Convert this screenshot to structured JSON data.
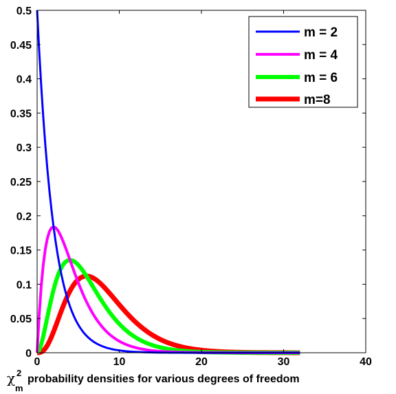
{
  "chart_data": {
    "type": "line",
    "title": "",
    "xlabel": "probability densities for various degrees of freedom",
    "xlabel_symbol": "χ",
    "xlabel_superscript": "2",
    "xlabel_subscript": "m",
    "ylabel": "",
    "xlim": [
      0,
      40
    ],
    "ylim": [
      0,
      0.5
    ],
    "x_ticks": [
      "0",
      "10",
      "20",
      "30",
      "40"
    ],
    "y_ticks": [
      "0",
      "0.05",
      "0.1",
      "0.15",
      "0.2",
      "0.25",
      "0.3",
      "0.35",
      "0.4",
      "0.45",
      "0.5"
    ],
    "grid": false,
    "legend_position": "top-right",
    "x_start": 0,
    "x_end": 32,
    "x_step": 0.25,
    "series": [
      {
        "name": "m = 2",
        "dof": 2,
        "color": "#0000ff",
        "line_weight": "thin",
        "points": [
          [
            0,
            0.5
          ],
          [
            2,
            0.184
          ],
          [
            4,
            0.068
          ],
          [
            6,
            0.025
          ],
          [
            8,
            0.009
          ],
          [
            10,
            0.0034
          ],
          [
            12,
            0.0012
          ],
          [
            16,
            0.0002
          ],
          [
            20,
            0.0
          ],
          [
            32,
            0.0
          ]
        ]
      },
      {
        "name": "m = 4",
        "dof": 4,
        "color": "#ff00ff",
        "line_weight": "medium",
        "points": [
          [
            0,
            0
          ],
          [
            2,
            0.184
          ],
          [
            4,
            0.135
          ],
          [
            6,
            0.075
          ],
          [
            8,
            0.037
          ],
          [
            10,
            0.017
          ],
          [
            12,
            0.0074
          ],
          [
            16,
            0.0013
          ],
          [
            20,
            0.0002
          ],
          [
            32,
            0.0
          ]
        ]
      },
      {
        "name": "m = 6",
        "dof": 6,
        "color": "#00ff00",
        "line_weight": "thick",
        "points": [
          [
            0,
            0
          ],
          [
            2,
            0.092
          ],
          [
            4,
            0.135
          ],
          [
            6,
            0.112
          ],
          [
            8,
            0.073
          ],
          [
            10,
            0.042
          ],
          [
            12,
            0.022
          ],
          [
            16,
            0.0054
          ],
          [
            20,
            0.0011
          ],
          [
            32,
            0.0
          ]
        ]
      },
      {
        "name": "m=8",
        "dof": 8,
        "color": "#ff0000",
        "line_weight": "thickest",
        "points": [
          [
            0,
            0
          ],
          [
            2,
            0.031
          ],
          [
            4,
            0.09
          ],
          [
            6,
            0.112
          ],
          [
            8,
            0.098
          ],
          [
            10,
            0.07
          ],
          [
            12,
            0.045
          ],
          [
            16,
            0.0143
          ],
          [
            20,
            0.0038
          ],
          [
            32,
            0.0001
          ]
        ]
      }
    ]
  }
}
